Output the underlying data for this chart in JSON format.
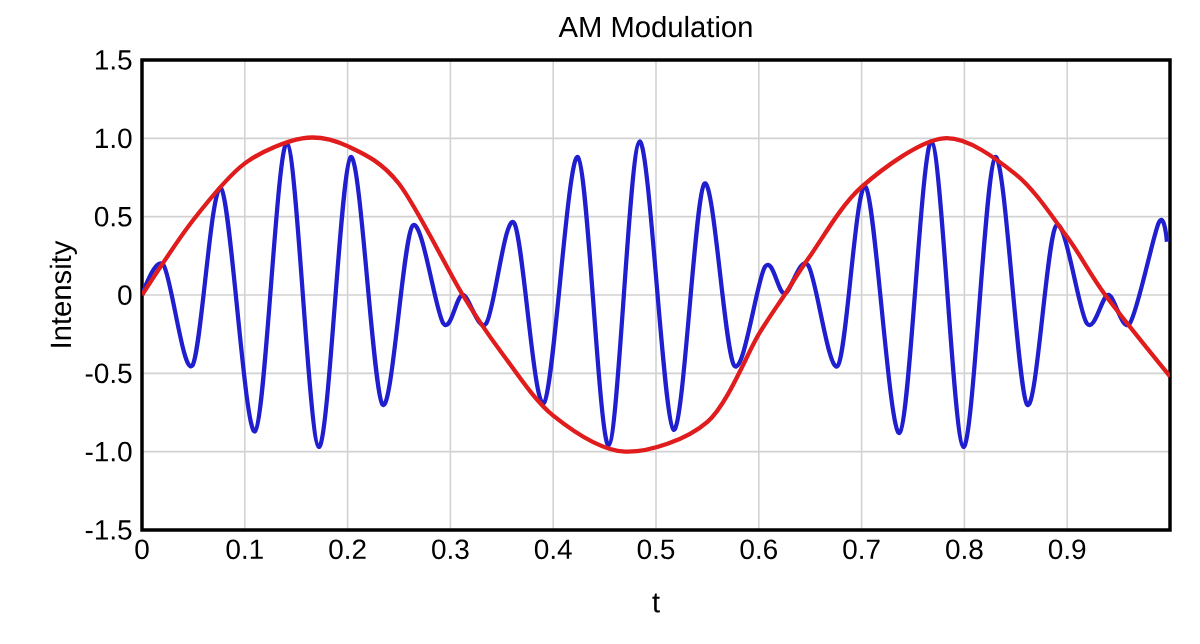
{
  "chart_data": {
    "type": "line",
    "title": "AM Modulation",
    "xlabel": "t",
    "ylabel": "Intensity",
    "xlim": [
      0,
      1
    ],
    "ylim": [
      -1.5,
      1.5
    ],
    "xticks": [
      0,
      0.1,
      0.2,
      0.3,
      0.4,
      0.5,
      0.6,
      0.7,
      0.8,
      0.9
    ],
    "yticks": [
      {
        "value": -1.5,
        "label": "-1.5"
      },
      {
        "value": -1,
        "label": "-1.0"
      },
      {
        "value": -0.5,
        "label": "-0.5"
      },
      0,
      0.5,
      {
        "value": 1,
        "label": "1.0"
      },
      1.5
    ],
    "grid": true,
    "legend": false,
    "marker": "none",
    "line_style": "solid",
    "series": [
      {
        "color": "#1f1fd0",
        "x": [
          0,
          0.021,
          0.049,
          0.077,
          0.11,
          0.141,
          0.172,
          0.203,
          0.234,
          0.263,
          0.293,
          0.312,
          0.335,
          0.362,
          0.391,
          0.424,
          0.454,
          0.484,
          0.517,
          0.547,
          0.576,
          0.606,
          0.625,
          0.648,
          0.677,
          0.704,
          0.737,
          0.768,
          0.799,
          0.83,
          0.861,
          0.889,
          0.919,
          0.94,
          0.961,
          0.989,
          0.997
        ],
        "values": [
          0,
          0.19,
          -0.45,
          0.68,
          -0.87,
          0.97,
          -0.97,
          0.88,
          -0.7,
          0.44,
          -0.18,
          0,
          -0.18,
          0.46,
          -0.69,
          0.88,
          -0.96,
          0.98,
          -0.86,
          0.71,
          -0.45,
          0.18,
          0.01,
          0.19,
          -0.45,
          0.69,
          -0.88,
          0.98,
          -0.97,
          0.88,
          -0.7,
          0.44,
          -0.18,
          0,
          -0.18,
          0.46,
          0.34
        ]
      },
      {
        "color": "#e01c1c",
        "x": [
          0,
          0.05,
          0.1,
          0.156,
          0.2,
          0.25,
          0.312,
          0.35,
          0.4,
          0.47,
          0.55,
          0.6,
          0.625,
          0.65,
          0.7,
          0.78,
          0.85,
          0.9,
          0.937,
          1
        ],
        "values": [
          0,
          0.48,
          0.84,
          1,
          0.95,
          0.71,
          0,
          -0.37,
          -0.77,
          -1,
          -0.81,
          -0.25,
          0,
          0.25,
          0.69,
          1,
          0.77,
          0.37,
          0,
          -0.52
        ]
      }
    ]
  }
}
